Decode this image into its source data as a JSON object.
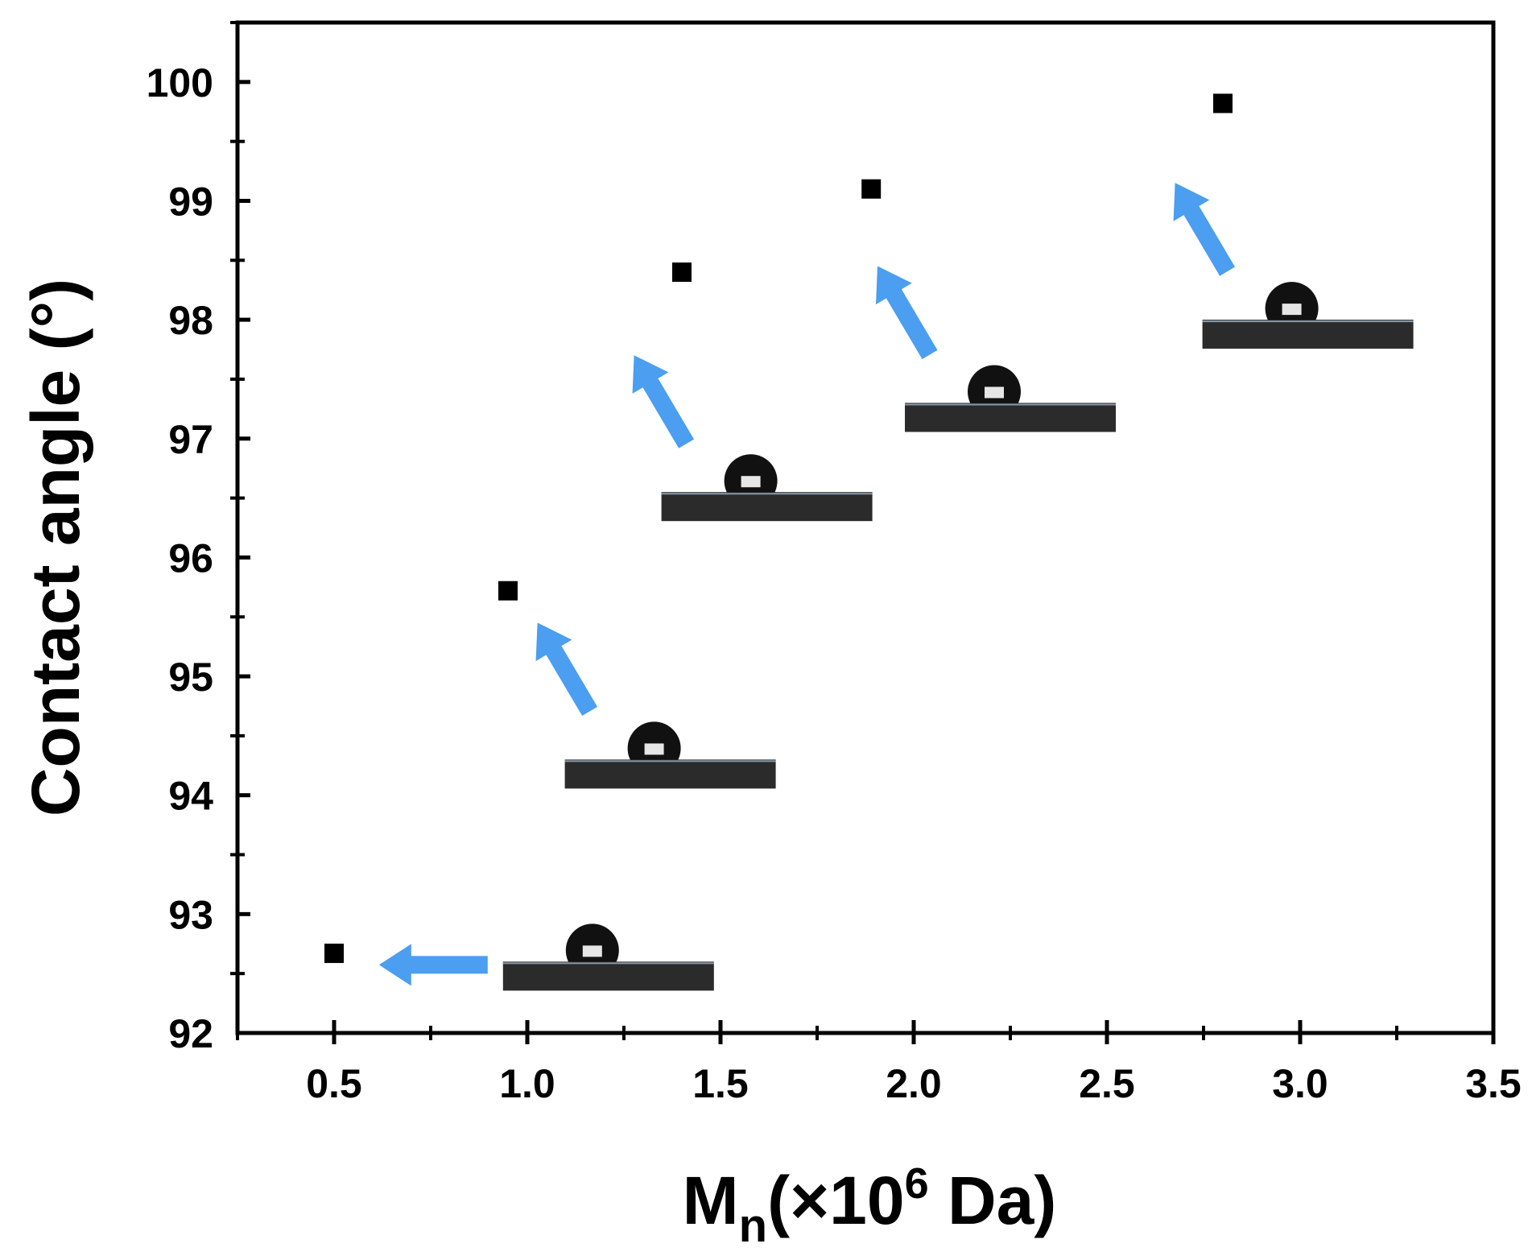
{
  "chart_data": {
    "type": "scatter",
    "title": "",
    "xlabel": {
      "main": "M",
      "sub": "n",
      "pre": "(×10",
      "sup": "6",
      "post": " Da)"
    },
    "ylabel": "Contact angle (°)",
    "xlim": [
      0.25,
      3.5
    ],
    "ylim": [
      92,
      100.5
    ],
    "xticks": [
      0.5,
      1.0,
      1.5,
      2.0,
      2.5,
      3.0,
      3.5
    ],
    "xtick_labels": [
      "0.5",
      "1.0",
      "1.5",
      "2.0",
      "2.5",
      "3.0",
      "3.5"
    ],
    "yticks": [
      92,
      93,
      94,
      95,
      96,
      97,
      98,
      99,
      100
    ],
    "ytick_labels": [
      "92",
      "93",
      "94",
      "95",
      "96",
      "97",
      "98",
      "99",
      "100"
    ],
    "series": [
      {
        "name": "contact angle",
        "marker": "square",
        "color": "#000000",
        "x": [
          0.5,
          0.95,
          1.4,
          1.89,
          2.8
        ],
        "y": [
          92.67,
          95.72,
          98.4,
          99.1,
          99.82
        ]
      }
    ],
    "insets": [
      {
        "description": "droplet image",
        "center_x": 1.21,
        "center_y": 92.6,
        "arrow_direction": "left"
      },
      {
        "description": "droplet image",
        "center_x": 1.37,
        "center_y": 94.3,
        "arrow_direction": "up-left"
      },
      {
        "description": "droplet image",
        "center_x": 1.62,
        "center_y": 96.55,
        "arrow_direction": "up-left"
      },
      {
        "description": "droplet image",
        "center_x": 2.25,
        "center_y": 97.3,
        "arrow_direction": "up-left"
      },
      {
        "description": "droplet image",
        "center_x": 3.02,
        "center_y": 98.0,
        "arrow_direction": "up-left"
      }
    ],
    "colors": {
      "marker": "#000000",
      "arrow": "#4b9ef0",
      "surface": "#2b2b2b"
    }
  }
}
